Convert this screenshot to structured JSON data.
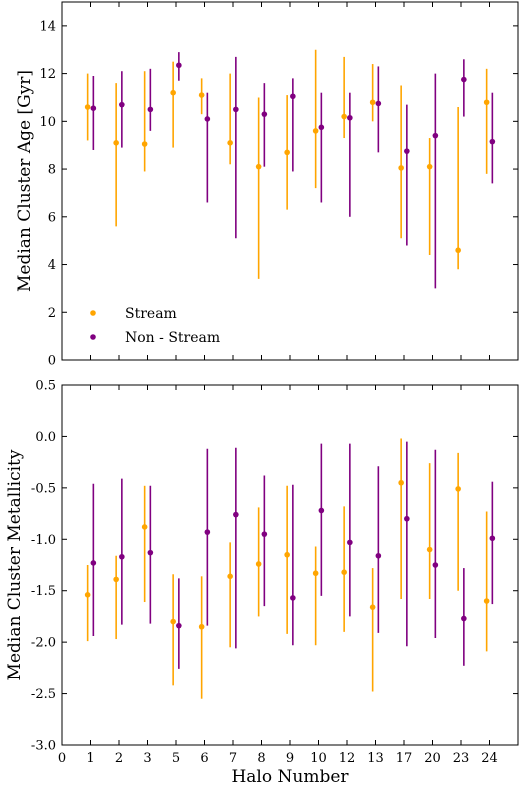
{
  "chart_data": [
    {
      "type": "scatter",
      "panel": "top",
      "xlabel": "",
      "ylabel": "Median Cluster Age [Gyr]",
      "ylim": [
        0,
        15
      ],
      "yticks": [
        0,
        2,
        4,
        6,
        8,
        10,
        12,
        14
      ],
      "xlim": [
        0,
        16
      ],
      "xticks": [
        "0",
        "1",
        "2",
        "3",
        "5",
        "6",
        "7",
        "8",
        "9",
        "10",
        "12",
        "13",
        "17",
        "20",
        "23",
        "24"
      ],
      "legend": {
        "placement": "lower-left",
        "entries": [
          "Stream",
          "Non - Stream"
        ]
      },
      "categories": [
        "1",
        "2",
        "3",
        "5",
        "6",
        "7",
        "8",
        "9",
        "10",
        "12",
        "13",
        "17",
        "20",
        "23",
        "24"
      ],
      "series": [
        {
          "name": "Stream",
          "color": "#FFA500",
          "x": [
            0.9,
            1.9,
            2.9,
            3.9,
            4.9,
            5.9,
            6.9,
            7.9,
            8.9,
            9.9,
            10.9,
            11.9,
            12.9,
            13.9,
            14.9
          ],
          "y": [
            10.6,
            9.1,
            9.05,
            11.2,
            11.1,
            9.1,
            8.1,
            8.7,
            9.6,
            10.2,
            10.8,
            8.05,
            8.1,
            4.6,
            10.8
          ],
          "ylow": [
            9.2,
            5.6,
            7.9,
            8.9,
            10.3,
            8.2,
            3.4,
            6.3,
            7.2,
            9.3,
            10.0,
            5.1,
            4.4,
            3.8,
            7.8
          ],
          "yhigh": [
            12.0,
            11.6,
            12.1,
            12.5,
            11.8,
            12.0,
            11.0,
            11.1,
            13.0,
            12.7,
            12.4,
            11.5,
            9.3,
            10.6,
            12.2
          ]
        },
        {
          "name": "Non - Stream",
          "color": "#800080",
          "x": [
            1.1,
            2.1,
            3.1,
            4.1,
            5.1,
            6.1,
            7.1,
            8.1,
            9.1,
            10.1,
            11.1,
            12.1,
            13.1,
            14.1,
            15.1
          ],
          "y": [
            10.55,
            10.7,
            10.5,
            12.35,
            10.1,
            10.5,
            10.3,
            11.05,
            9.75,
            10.15,
            10.75,
            8.75,
            9.4,
            11.75,
            9.15
          ],
          "ylow": [
            8.8,
            8.9,
            9.6,
            11.7,
            6.6,
            5.1,
            8.1,
            7.9,
            6.6,
            6.0,
            8.7,
            4.8,
            3.0,
            10.2,
            7.4
          ],
          "yhigh": [
            11.9,
            12.1,
            12.2,
            12.9,
            11.2,
            12.7,
            11.6,
            11.8,
            11.2,
            11.2,
            12.3,
            10.7,
            12.0,
            12.6,
            11.2
          ]
        }
      ]
    },
    {
      "type": "scatter",
      "panel": "bottom",
      "xlabel": "Halo Number",
      "ylabel": "Median Cluster Metallicity",
      "ylim": [
        -3.0,
        0.5
      ],
      "yticks": [
        "-3.0",
        "-2.5",
        "-2.0",
        "-1.5",
        "-1.0",
        "-0.5",
        "0.0",
        "0.5"
      ],
      "xlim": [
        0,
        16
      ],
      "xticks": [
        "0",
        "1",
        "2",
        "3",
        "5",
        "6",
        "7",
        "8",
        "9",
        "10",
        "12",
        "13",
        "17",
        "20",
        "23",
        "24"
      ],
      "categories": [
        "1",
        "2",
        "3",
        "5",
        "6",
        "7",
        "8",
        "9",
        "10",
        "12",
        "13",
        "17",
        "20",
        "23",
        "24"
      ],
      "series": [
        {
          "name": "Stream",
          "color": "#FFA500",
          "x": [
            0.9,
            1.9,
            2.9,
            3.9,
            4.9,
            5.9,
            6.9,
            7.9,
            8.9,
            9.9,
            10.9,
            11.9,
            12.9,
            13.9,
            14.9
          ],
          "y": [
            -1.54,
            -1.39,
            -0.88,
            -1.8,
            -1.85,
            -1.36,
            -1.24,
            -1.15,
            -1.33,
            -1.32,
            -1.66,
            -0.45,
            -1.1,
            -0.51,
            -1.6
          ],
          "ylow": [
            -1.99,
            -1.97,
            -1.61,
            -2.42,
            -2.55,
            -2.05,
            -1.75,
            -1.92,
            -2.03,
            -1.9,
            -2.48,
            -1.58,
            -1.58,
            -1.5,
            -2.09
          ],
          "yhigh": [
            -1.25,
            -1.16,
            -0.48,
            -1.34,
            -1.36,
            -1.03,
            -0.69,
            -0.48,
            -1.07,
            -0.68,
            -1.28,
            -0.02,
            -0.26,
            -0.16,
            -0.73
          ]
        },
        {
          "name": "Non - Stream",
          "color": "#800080",
          "x": [
            1.1,
            2.1,
            3.1,
            4.1,
            5.1,
            6.1,
            7.1,
            8.1,
            9.1,
            10.1,
            11.1,
            12.1,
            13.1,
            14.1,
            15.1
          ],
          "y": [
            -1.23,
            -1.17,
            -1.13,
            -1.84,
            -0.93,
            -0.76,
            -0.95,
            -1.57,
            -0.72,
            -1.03,
            -1.16,
            -0.8,
            -1.25,
            -1.77,
            -0.99
          ],
          "ylow": [
            -1.94,
            -1.83,
            -1.82,
            -2.26,
            -1.84,
            -2.06,
            -1.65,
            -2.03,
            -1.55,
            -1.75,
            -1.91,
            -2.04,
            -1.96,
            -2.23,
            -1.63
          ],
          "yhigh": [
            -0.46,
            -0.41,
            -0.48,
            -1.38,
            -0.12,
            -0.11,
            -0.38,
            -0.47,
            -0.07,
            -0.07,
            -0.29,
            -0.05,
            -0.13,
            -1.28,
            -0.44
          ]
        }
      ]
    }
  ]
}
